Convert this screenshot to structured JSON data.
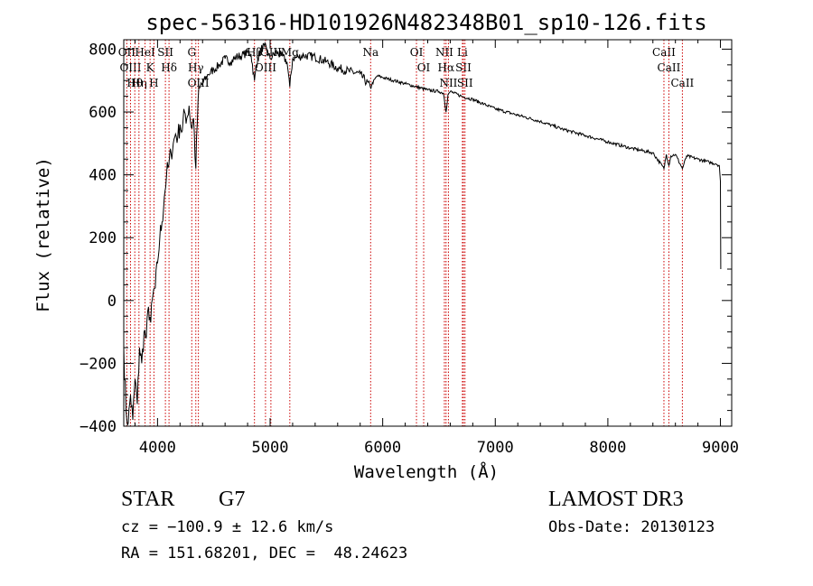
{
  "chart_data": {
    "type": "line",
    "title": "spec-56316-HD101926N482348B01_sp10-126.fits",
    "xlabel": "Wavelength (Å)",
    "ylabel": "Flux (relative)",
    "xlim": [
      3700,
      9100
    ],
    "ylim": [
      -400,
      830
    ],
    "x_ticks": [
      4000,
      5000,
      6000,
      7000,
      8000,
      9000
    ],
    "y_ticks": [
      -400,
      -200,
      0,
      200,
      400,
      600,
      800
    ],
    "x_tick_labels": [
      "4000",
      "5000",
      "6000",
      "7000",
      "8000",
      "9000"
    ],
    "y_tick_labels": [
      "−400",
      "−200",
      "0",
      "200",
      "400",
      "600",
      "800"
    ],
    "line_color": "#000000",
    "marker_color": "#cc0000",
    "series": [
      {
        "name": "flux",
        "x": [
          3700,
          3720,
          3740,
          3760,
          3780,
          3800,
          3820,
          3840,
          3860,
          3880,
          3900,
          3920,
          3940,
          3960,
          3980,
          4000,
          4020,
          4040,
          4060,
          4080,
          4100,
          4120,
          4140,
          4160,
          4180,
          4200,
          4220,
          4240,
          4260,
          4280,
          4300,
          4320,
          4340,
          4360,
          4380,
          4400,
          4450,
          4500,
          4550,
          4600,
          4650,
          4700,
          4750,
          4800,
          4830,
          4861,
          4890,
          4920,
          4950,
          5000,
          5050,
          5100,
          5150,
          5175,
          5200,
          5250,
          5300,
          5400,
          5500,
          5600,
          5700,
          5800,
          5890,
          5950,
          6000,
          6100,
          6200,
          6300,
          6400,
          6500,
          6540,
          6563,
          6580,
          6600,
          6700,
          6800,
          6900,
          7000,
          7200,
          7400,
          7600,
          7800,
          8000,
          8200,
          8400,
          8498,
          8520,
          8542,
          8560,
          8600,
          8662,
          8700,
          8800,
          8900,
          8960,
          8990,
          9000,
          9003
        ],
        "y": [
          -150,
          -350,
          -390,
          -300,
          -380,
          -250,
          -330,
          -150,
          -200,
          -100,
          -120,
          -20,
          -70,
          20,
          40,
          120,
          200,
          250,
          330,
          400,
          430,
          470,
          500,
          530,
          520,
          560,
          540,
          600,
          580,
          620,
          550,
          580,
          420,
          640,
          680,
          690,
          720,
          735,
          750,
          770,
          760,
          775,
          780,
          790,
          785,
          700,
          770,
          800,
          810,
          770,
          790,
          780,
          760,
          680,
          770,
          775,
          780,
          775,
          760,
          740,
          730,
          720,
          680,
          715,
          710,
          700,
          690,
          680,
          670,
          665,
          660,
          600,
          655,
          665,
          650,
          640,
          625,
          610,
          590,
          570,
          545,
          525,
          505,
          485,
          470,
          420,
          465,
          430,
          460,
          465,
          420,
          460,
          450,
          440,
          435,
          430,
          380,
          100
        ]
      }
    ],
    "line_markers": [
      {
        "label": "Hθ",
        "x": 3798
      },
      {
        "label": "OII",
        "x": 3727
      },
      {
        "label": "OIII",
        "x": 3760
      },
      {
        "label": "K",
        "x": 3934
      },
      {
        "label": "HeI",
        "x": 3889
      },
      {
        "label": "Hη",
        "x": 3835
      },
      {
        "label": "SII",
        "x": 4070
      },
      {
        "label": "H",
        "x": 3968
      },
      {
        "label": "Hδ",
        "x": 4102
      },
      {
        "label": "OIII",
        "x": 4363
      },
      {
        "label": "Hγ",
        "x": 4340
      },
      {
        "label": "G",
        "x": 4304
      },
      {
        "label": "OIII",
        "x": 4959
      },
      {
        "label": "OIII",
        "x": 5007
      },
      {
        "label": "Hβ",
        "x": 4861
      },
      {
        "label": "Mg",
        "x": 5175
      },
      {
        "label": "Na",
        "x": 5893
      },
      {
        "label": "OI",
        "x": 6300
      },
      {
        "label": "OI",
        "x": 6364
      },
      {
        "label": "Hα",
        "x": 6563
      },
      {
        "label": "SII",
        "x": 6717
      },
      {
        "label": "NII",
        "x": 6548
      },
      {
        "label": "Li",
        "x": 6708
      },
      {
        "label": "NII",
        "x": 6584
      },
      {
        "label": "SII",
        "x": 6731
      },
      {
        "label": "CaII",
        "x": 8498
      },
      {
        "label": "CaII",
        "x": 8542
      },
      {
        "label": "CaII",
        "x": 8662
      }
    ]
  },
  "info": {
    "class_label": "STAR",
    "subclass_label": "G7",
    "redshift_text": "cz = −100.9 ± 12.6 km/s",
    "coords_text": "RA = 151.68201, DEC =  48.24623",
    "survey_text": "LAMOST DR3",
    "obsdate_text": "Obs-Date: 20130123"
  }
}
